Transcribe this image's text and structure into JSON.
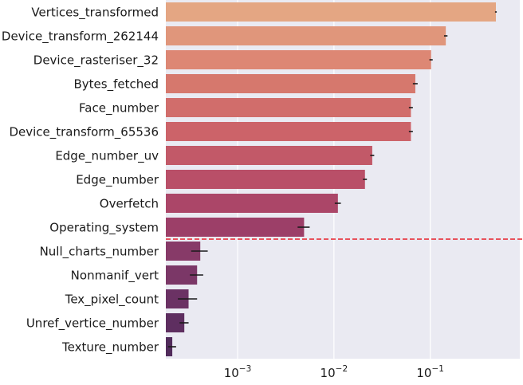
{
  "chart_data": {
    "type": "bar",
    "orientation": "horizontal",
    "x_scale": "log",
    "xlim": [
      0.00018,
      0.85
    ],
    "x_ticks": [
      {
        "value": 0.001,
        "base": "10",
        "exp": "−3"
      },
      {
        "value": 0.01,
        "base": "10",
        "exp": "−2"
      },
      {
        "value": 0.1,
        "base": "10",
        "exp": "−1"
      }
    ],
    "grid": true,
    "background_color": "#eaeaf2",
    "threshold_line": {
      "after_index": 9,
      "color": "#e8202a",
      "style": "dashed"
    },
    "categories": [
      "Vertices_transformed",
      "Device_transform_262144",
      "Device_rasteriser_32",
      "Bytes_fetched",
      "Face_number",
      "Device_transform_65536",
      "Edge_number_uv",
      "Edge_number",
      "Overfetch",
      "Operating_system",
      "Null_charts_number",
      "Nonmanif_vert",
      "Tex_pixel_count",
      "Unref_vertice_number",
      "Texture_number"
    ],
    "values": [
      0.48,
      0.145,
      0.102,
      0.07,
      0.063,
      0.063,
      0.025,
      0.021,
      0.011,
      0.0049,
      0.00041,
      0.00038,
      0.00031,
      0.00028,
      0.00021
    ],
    "error": [
      0.01,
      0.006,
      0.004,
      0.004,
      0.003,
      0.003,
      0.0012,
      0.001,
      0.0008,
      0.0007,
      8e-05,
      6e-05,
      7e-05,
      3e-05,
      2e-05
    ],
    "colors": [
      "#e4a683",
      "#e0967b",
      "#dd8774",
      "#d6786d",
      "#d16d6b",
      "#cc6369",
      "#c25968",
      "#b94f68",
      "#ab4668",
      "#9c3f68",
      "#873a68",
      "#7b3767",
      "#6b3264",
      "#5e2e60",
      "#512b5b"
    ]
  }
}
